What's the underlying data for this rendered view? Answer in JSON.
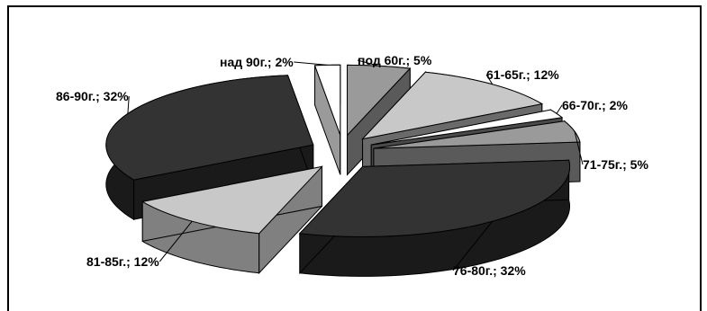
{
  "chart_data": {
    "type": "pie",
    "style": "3d-exploded",
    "title": "",
    "legend": "none",
    "slices": [
      {
        "label": "под 60г.",
        "value": 5,
        "text": "под 60г.; 5%",
        "top": "#9a9a9a",
        "side": "#5a5a5a"
      },
      {
        "label": "61-65г.",
        "value": 12,
        "text": "61-65г.; 12%",
        "top": "#c8c8c8",
        "side": "#6a6a6a"
      },
      {
        "label": "66-70г.",
        "value": 2,
        "text": "66-70г.; 2%",
        "top": "#ffffff",
        "side": "#4a4a4a"
      },
      {
        "label": "71-75г.",
        "value": 5,
        "text": "71-75г.; 5%",
        "top": "#9a9a9a",
        "side": "#5a5a5a"
      },
      {
        "label": "76-80г.",
        "value": 32,
        "text": "76-80г.; 32%",
        "top": "#333333",
        "side": "#1a1a1a"
      },
      {
        "label": "81-85г.",
        "value": 12,
        "text": "81-85г.; 12%",
        "top": "#c8c8c8",
        "side": "#808080"
      },
      {
        "label": "86-90г.",
        "value": 32,
        "text": "86-90г.; 32%",
        "top": "#333333",
        "side": "#1a1a1a"
      },
      {
        "label": "над 90г.",
        "value": 2,
        "text": "над 90г.; 2%",
        "top": "#ffffff",
        "side": "#9a9a9a"
      }
    ]
  }
}
